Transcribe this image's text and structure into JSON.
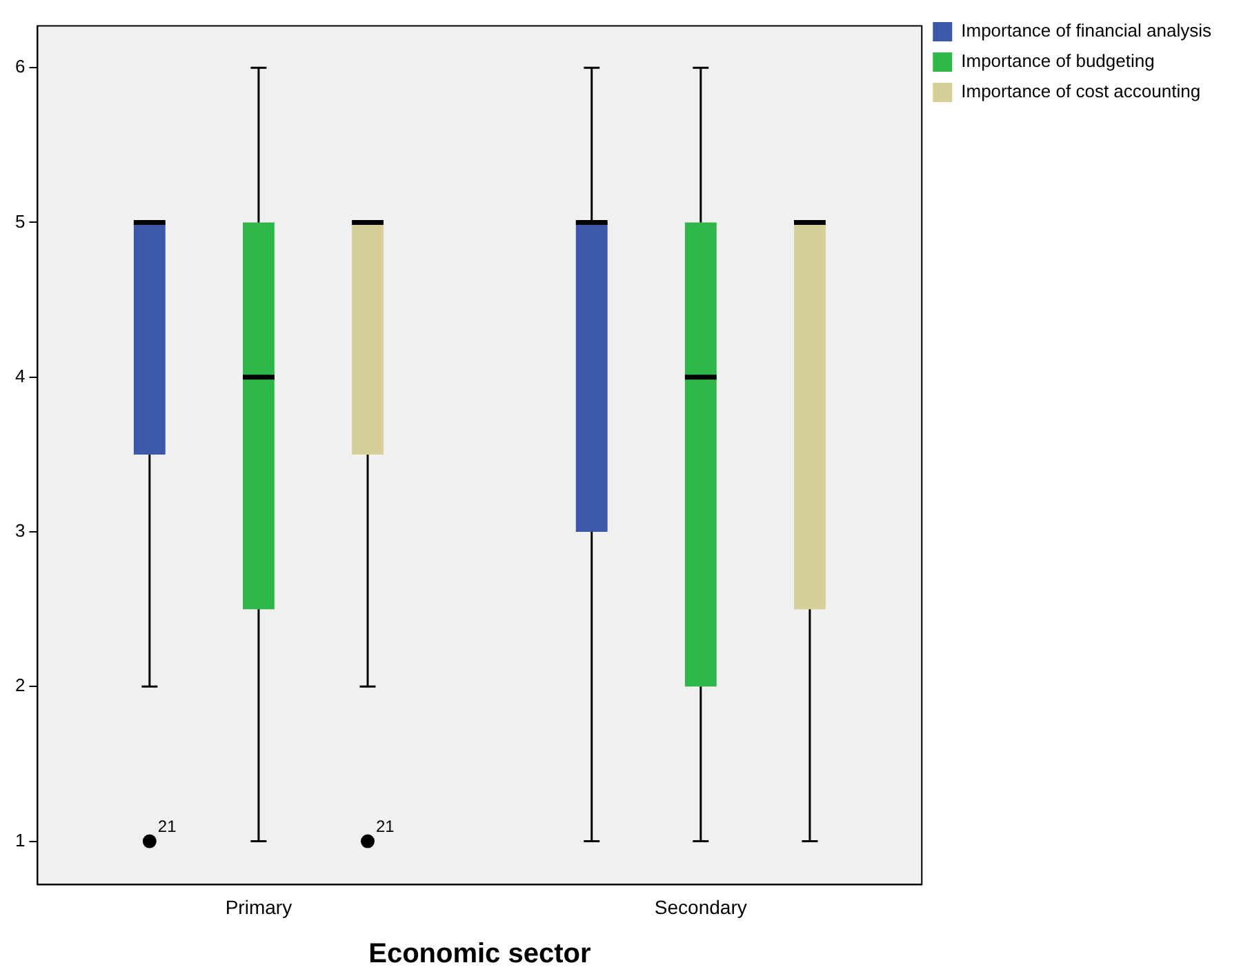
{
  "chart_data": {
    "type": "box",
    "xlabel": "Economic sector",
    "categories": [
      "Primary",
      "Secondary"
    ],
    "series": [
      {
        "name": "Importance of financial analysis",
        "color": "#3c58a8",
        "boxes": [
          {
            "low": 2,
            "q1": 3.5,
            "median": 5,
            "q3": 5,
            "high": 5,
            "outliers": [
              1
            ]
          },
          {
            "low": 1,
            "q1": 3,
            "median": 5,
            "q3": 5,
            "high": 6
          }
        ]
      },
      {
        "name": "Importance of budgeting",
        "color": "#2fb84a",
        "boxes": [
          {
            "low": 1,
            "q1": 2.5,
            "median": 4,
            "q3": 5,
            "high": 6
          },
          {
            "low": 1,
            "q1": 2,
            "median": 4,
            "q3": 5,
            "high": 6
          }
        ]
      },
      {
        "name": "Importance of cost accounting",
        "color": "#d6cf97",
        "boxes": [
          {
            "low": 2,
            "q1": 3.5,
            "median": 5,
            "q3": 5,
            "high": 5,
            "outliers": [
              1
            ]
          },
          {
            "low": 1,
            "q1": 2.5,
            "median": 5,
            "q3": 5,
            "high": 5
          }
        ]
      }
    ],
    "annotations": [
      "21",
      "21"
    ],
    "ylim": [
      0.72,
      6.27
    ],
    "yticks": [
      1,
      2,
      3,
      4,
      5,
      6
    ],
    "grid": false,
    "legend": "top right"
  }
}
